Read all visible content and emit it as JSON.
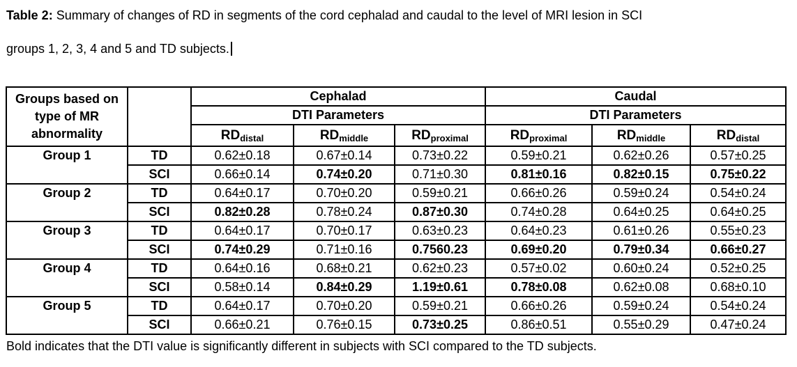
{
  "caption": {
    "label": "Table 2:",
    "line1_rest": " Summary of changes of RD in segments of the cord cephalad and caudal to the level of MRI lesion in SCI",
    "line2": "groups 1, 2, 3, 4 and 5 and TD subjects."
  },
  "table": {
    "row_header_title": "Groups based on type of MR abnormality",
    "sections": [
      {
        "title": "Cephalad",
        "subtitle": "DTI Parameters",
        "columns": [
          {
            "base": "RD",
            "sub": "distal"
          },
          {
            "base": "RD",
            "sub": "middle"
          },
          {
            "base": "RD",
            "sub": "proximal"
          }
        ]
      },
      {
        "title": "Caudal",
        "subtitle": "DTI Parameters",
        "columns": [
          {
            "base": "RD",
            "sub": "proximal"
          },
          {
            "base": "RD",
            "sub": "middle"
          },
          {
            "base": "RD",
            "sub": "distal"
          }
        ]
      }
    ],
    "groups": [
      {
        "name": "Group 1",
        "rows": [
          {
            "label": "TD",
            "values": [
              {
                "text": "0.62±0.18",
                "bold": false
              },
              {
                "text": "0.67±0.14",
                "bold": false
              },
              {
                "text": "0.73±0.22",
                "bold": false
              },
              {
                "text": "0.59±0.21",
                "bold": false
              },
              {
                "text": "0.62±0.26",
                "bold": false
              },
              {
                "text": "0.57±0.25",
                "bold": false
              }
            ]
          },
          {
            "label": "SCI",
            "values": [
              {
                "text": "0.66±0.14",
                "bold": false
              },
              {
                "text": "0.74±0.20",
                "bold": true
              },
              {
                "text": "0.71±0.30",
                "bold": false
              },
              {
                "text": "0.81±0.16",
                "bold": true
              },
              {
                "text": "0.82±0.15",
                "bold": true
              },
              {
                "text": "0.75±0.22",
                "bold": true
              }
            ]
          }
        ]
      },
      {
        "name": "Group 2",
        "rows": [
          {
            "label": "TD",
            "values": [
              {
                "text": "0.64±0.17",
                "bold": false
              },
              {
                "text": "0.70±0.20",
                "bold": false
              },
              {
                "text": "0.59±0.21",
                "bold": false
              },
              {
                "text": "0.66±0.26",
                "bold": false
              },
              {
                "text": "0.59±0.24",
                "bold": false
              },
              {
                "text": "0.54±0.24",
                "bold": false
              }
            ]
          },
          {
            "label": "SCI",
            "values": [
              {
                "text": "0.82±0.28",
                "bold": true
              },
              {
                "text": "0.78±0.24",
                "bold": false
              },
              {
                "text": "0.87±0.30",
                "bold": true
              },
              {
                "text": "0.74±0.28",
                "bold": false
              },
              {
                "text": "0.64±0.25",
                "bold": false
              },
              {
                "text": "0.64±0.25",
                "bold": false
              }
            ]
          }
        ]
      },
      {
        "name": "Group 3",
        "rows": [
          {
            "label": "TD",
            "values": [
              {
                "text": "0.64±0.17",
                "bold": false
              },
              {
                "text": "0.70±0.17",
                "bold": false
              },
              {
                "text": "0.63±0.23",
                "bold": false
              },
              {
                "text": "0.64±0.23",
                "bold": false
              },
              {
                "text": "0.61±0.26",
                "bold": false
              },
              {
                "text": "0.55±0.23",
                "bold": false
              }
            ]
          },
          {
            "label": "SCI",
            "values": [
              {
                "text": "0.74±0.29",
                "bold": true
              },
              {
                "text": "0.71±0.16",
                "bold": false
              },
              {
                "text": "0.7560.23",
                "bold": true
              },
              {
                "text": "0.69±0.20",
                "bold": true
              },
              {
                "text": "0.79±0.34",
                "bold": true
              },
              {
                "text": "0.66±0.27",
                "bold": true
              }
            ]
          }
        ]
      },
      {
        "name": "Group 4",
        "rows": [
          {
            "label": "TD",
            "values": [
              {
                "text": "0.64±0.16",
                "bold": false
              },
              {
                "text": "0.68±0.21",
                "bold": false
              },
              {
                "text": "0.62±0.23",
                "bold": false
              },
              {
                "text": "0.57±0.02",
                "bold": false
              },
              {
                "text": "0.60±0.24",
                "bold": false
              },
              {
                "text": "0.52±0.25",
                "bold": false
              }
            ]
          },
          {
            "label": "SCI",
            "values": [
              {
                "text": "0.58±0.14",
                "bold": false
              },
              {
                "text": "0.84±0.29",
                "bold": true
              },
              {
                "text": "1.19±0.61",
                "bold": true
              },
              {
                "text": "0.78±0.08",
                "bold": true
              },
              {
                "text": "0.62±0.08",
                "bold": false
              },
              {
                "text": "0.68±0.10",
                "bold": false
              }
            ]
          }
        ]
      },
      {
        "name": "Group 5",
        "rows": [
          {
            "label": "TD",
            "values": [
              {
                "text": "0.64±0.17",
                "bold": false
              },
              {
                "text": "0.70±0.20",
                "bold": false
              },
              {
                "text": "0.59±0.21",
                "bold": false
              },
              {
                "text": "0.66±0.26",
                "bold": false
              },
              {
                "text": "0.59±0.24",
                "bold": false
              },
              {
                "text": "0.54±0.24",
                "bold": false
              }
            ]
          },
          {
            "label": "SCI",
            "values": [
              {
                "text": "0.66±0.21",
                "bold": false
              },
              {
                "text": "0.76±0.15",
                "bold": false
              },
              {
                "text": "0.73±0.25",
                "bold": true
              },
              {
                "text": "0.86±0.51",
                "bold": false
              },
              {
                "text": "0.55±0.29",
                "bold": false
              },
              {
                "text": "0.47±0.24",
                "bold": false
              }
            ]
          }
        ]
      }
    ]
  },
  "footnote": "Bold indicates that the DTI value is significantly different in subjects with SCI compared to the TD subjects."
}
